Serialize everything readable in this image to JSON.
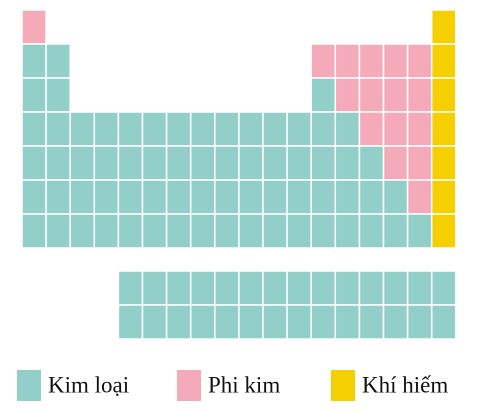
{
  "legend": {
    "items": [
      {
        "label": "Kim loại"
      },
      {
        "label": "Phi kim"
      },
      {
        "label": "Khí hiếm"
      }
    ]
  }
}
